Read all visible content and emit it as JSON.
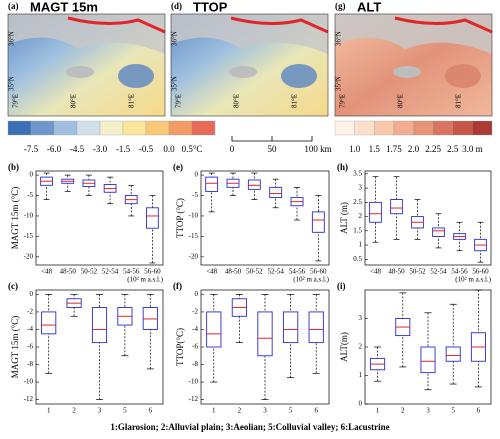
{
  "maps": [
    {
      "letter": "(a)",
      "title": "MAGT 15m",
      "style": "temp"
    },
    {
      "letter": "(d)",
      "title": "TTOP",
      "style": "temp"
    },
    {
      "letter": "(g)",
      "title": "ALT",
      "style": "alt"
    }
  ],
  "map_axis_labels": {
    "lon": [
      "79°E",
      "80°E",
      "81°E"
    ],
    "lat": [
      "35°N",
      "36°N"
    ]
  },
  "colorbars": {
    "temperature": {
      "colors": [
        "#3b6fb6",
        "#6f97cc",
        "#a3bfe0",
        "#d2e0ec",
        "#f3efc8",
        "#fbe69a",
        "#f9c97a",
        "#f39a66",
        "#e66a55"
      ],
      "labels": [
        "-7.5",
        "-6.0",
        "-4.5",
        "-3.0",
        "-1.5",
        "-0.5",
        "0.0",
        "0.5°C"
      ]
    },
    "alt": {
      "colors": [
        "#fff1e6",
        "#fde0cc",
        "#f9c8ad",
        "#f2ad92",
        "#e89277",
        "#d9745e",
        "#c75647",
        "#ab3a35"
      ],
      "labels": [
        "1.0",
        "1.5",
        "1.75",
        "2.0",
        "2.25",
        "2.5",
        "3.0 m"
      ]
    }
  },
  "scale_bar": [
    "0",
    "50",
    "100 km"
  ],
  "footnote": "1:Glarosion; 2:Alluvial plain; 3:Aeolian; 5:Colluvial valley; 6:Lacustrine",
  "chart_data": [
    {
      "type": "box",
      "panel": "(b)",
      "ylabel": "MAGT 15m (°C)",
      "xunit": "(10² m a.s.l.)",
      "categories": [
        "<48",
        "48-50",
        "50-52",
        "52-54",
        "54-56",
        "56-60"
      ],
      "ylim": [
        -22,
        1
      ],
      "yticks": [
        0,
        -5,
        -10,
        -15,
        -20
      ],
      "low": [
        -6,
        -4,
        -5,
        -7,
        -10,
        -21.5
      ],
      "q1": [
        -2.5,
        -2,
        -2.8,
        -4.2,
        -7,
        -13
      ],
      "median": [
        -1.5,
        -1.5,
        -2,
        -3.3,
        -6,
        -10
      ],
      "q3": [
        -0.5,
        -1,
        -1.2,
        -2.3,
        -5,
        -8
      ],
      "high": [
        0.5,
        0,
        0,
        -0.5,
        -2.5,
        -5
      ]
    },
    {
      "type": "box",
      "panel": "(e)",
      "ylabel": "TTOP (°C)",
      "xunit": "(10² m a.s.l.)",
      "categories": [
        "<48",
        "48-50",
        "50-52",
        "52-54",
        "54-56",
        "56-60"
      ],
      "ylim": [
        -22,
        1
      ],
      "yticks": [
        0,
        -5,
        -10,
        -15,
        -20
      ],
      "low": [
        -9,
        -5,
        -6,
        -8,
        -11,
        -21
      ],
      "q1": [
        -4,
        -3,
        -3.5,
        -5.5,
        -7.5,
        -14
      ],
      "median": [
        -2,
        -2,
        -2.5,
        -4.5,
        -6.5,
        -11
      ],
      "q3": [
        -0.5,
        -1,
        -1.2,
        -3,
        -5.5,
        -9
      ],
      "high": [
        0.5,
        0.5,
        0.5,
        -1,
        -3,
        -5
      ]
    },
    {
      "type": "box",
      "panel": "(h)",
      "ylabel": "ALT (m)",
      "xunit": "(10² m a.s.l.)",
      "categories": [
        "<48",
        "48-50",
        "50-52",
        "52-54",
        "54-56",
        "56-60"
      ],
      "ylim": [
        0.3,
        3.6
      ],
      "yticks": [
        0.5,
        1,
        1.5,
        2,
        2.5,
        3,
        3.5
      ],
      "low": [
        1.1,
        1.2,
        1.2,
        0.9,
        0.8,
        0.4
      ],
      "q1": [
        1.8,
        2.1,
        1.6,
        1.3,
        1.2,
        0.8
      ],
      "median": [
        2.1,
        2.3,
        1.8,
        1.5,
        1.3,
        1.0
      ],
      "q3": [
        2.5,
        2.6,
        2.0,
        1.6,
        1.4,
        1.2
      ],
      "high": [
        3.4,
        3.4,
        2.6,
        2.1,
        1.8,
        1.8
      ]
    },
    {
      "type": "box",
      "panel": "(c)",
      "ylabel": "MAGT 15m (°C)",
      "categories": [
        "1",
        "2",
        "3",
        "5",
        "6"
      ],
      "ylim": [
        -12.5,
        0.5
      ],
      "yticks": [
        0,
        -2,
        -4,
        -6,
        -8,
        -10,
        -12
      ],
      "low": [
        -9,
        -2.5,
        -12,
        -7,
        -8.5
      ],
      "q1": [
        -4.5,
        -1.5,
        -5.5,
        -3.5,
        -4
      ],
      "median": [
        -3.5,
        -1,
        -4,
        -2.5,
        -2.8
      ],
      "q3": [
        -2,
        -0.5,
        -1.5,
        -1.5,
        -1.5
      ],
      "high": [
        0,
        0,
        0,
        0,
        0
      ]
    },
    {
      "type": "box",
      "panel": "(f)",
      "ylabel": "TTOP(°C)",
      "categories": [
        "1",
        "2",
        "3",
        "5",
        "6"
      ],
      "ylim": [
        -12.5,
        0.5
      ],
      "yticks": [
        0,
        -2,
        -4,
        -6,
        -8,
        -10,
        -12
      ],
      "low": [
        -10,
        -5.5,
        -12,
        -9.5,
        -9
      ],
      "q1": [
        -6,
        -2.5,
        -7,
        -5.5,
        -5.5
      ],
      "median": [
        -4.5,
        -1.5,
        -5,
        -4,
        -4
      ],
      "q3": [
        -2,
        -0.5,
        -2,
        -2,
        -2
      ],
      "high": [
        0,
        0,
        0,
        0,
        0
      ]
    },
    {
      "type": "box",
      "panel": "(i)",
      "ylabel": "ALT(m)",
      "categories": [
        "1",
        "2",
        "3",
        "5",
        "6"
      ],
      "ylim": [
        0,
        4
      ],
      "yticks": [
        0,
        1,
        2,
        3
      ],
      "low": [
        0.8,
        1.3,
        0.5,
        0.7,
        0.6
      ],
      "q1": [
        1.2,
        2.4,
        1.1,
        1.5,
        1.5
      ],
      "median": [
        1.4,
        2.7,
        1.5,
        1.7,
        2.0
      ],
      "q3": [
        1.6,
        3.0,
        2.0,
        2.0,
        2.5
      ],
      "high": [
        2.0,
        3.9,
        3.2,
        3.5,
        4.0
      ]
    }
  ]
}
